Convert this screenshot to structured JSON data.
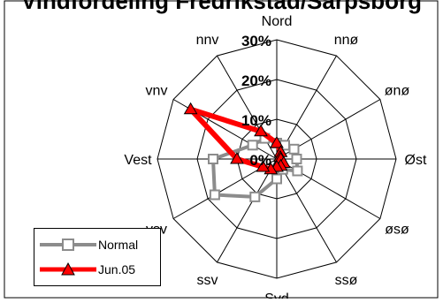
{
  "chart_data": {
    "type": "radar",
    "title": "Vindfordeling Fredrikstad/Sarpsborg",
    "directions": [
      "Nord",
      "nnø",
      "ønø",
      "Øst",
      "øsø",
      "ssø",
      "Syd",
      "ssv",
      "vsv",
      "Vest",
      "vnv",
      "nnv"
    ],
    "radial_ticks": [
      "0%",
      "10%",
      "20%",
      "30%"
    ],
    "rlim": [
      0,
      30
    ],
    "grid": true,
    "legend_position": "bottom-left",
    "series": [
      {
        "name": "Normal",
        "color": "#8c8c8c",
        "marker": "square",
        "values": [
          4,
          4,
          5,
          5,
          6,
          3,
          5,
          11,
          18,
          16,
          7,
          6
        ]
      },
      {
        "name": "Jun.05",
        "color": "#ff0000",
        "marker": "triangle",
        "values": [
          4,
          2,
          1,
          1,
          2,
          2,
          2,
          3,
          4,
          10,
          25,
          8
        ]
      }
    ]
  }
}
